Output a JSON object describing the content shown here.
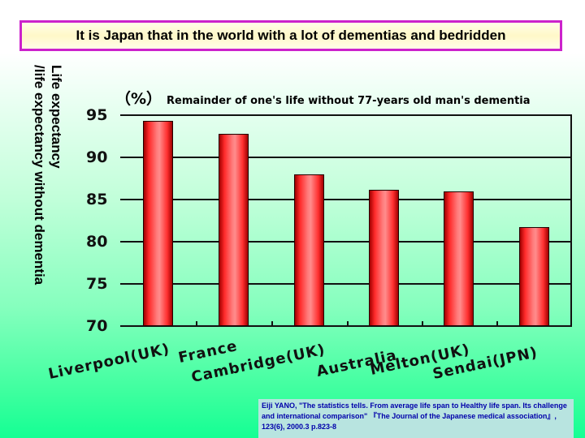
{
  "title": "It is Japan that in the world with a lot of dementias and bedridden",
  "y_axis_label_line1": "Life expectancy",
  "y_axis_label_line2": "/life expectancy without dementia",
  "subtitle_unit": "（%）",
  "subtitle_text": "Remainder of one's life without 77-years old man's dementia",
  "y_ticks": [
    "95",
    "90",
    "85",
    "80",
    "75",
    "70"
  ],
  "x_labels": [
    "Liverpool(UK)",
    "France",
    "Cambridge(UK)",
    "Australia",
    "Melton(UK)",
    "Sendai(JPN)"
  ],
  "citation": "Eiji YANO, \"The statistics tells. From average life span to Healthy life span. Its challenge and international comparison\" 『The Journal of the Japanese medical association』, 123(6), 2000.3 p.823-8",
  "colors": {
    "bar": "#ff3030",
    "title_border": "#cc22cc",
    "citation_text": "#0000aa",
    "citation_bg": "#b8e4e0"
  },
  "chart_data": {
    "type": "bar",
    "title": "Remainder of one's life without 77-years old man's dementia",
    "xlabel": "",
    "ylabel": "Life expectancy /life expectancy without dementia (%)",
    "categories": [
      "Liverpool(UK)",
      "France",
      "Cambridge(UK)",
      "Australia",
      "Melton(UK)",
      "Sendai(JPN)"
    ],
    "values": [
      94.3,
      92.8,
      88.0,
      86.2,
      86.0,
      81.7
    ],
    "ylim": [
      70,
      95
    ],
    "yticks": [
      70,
      75,
      80,
      85,
      90,
      95
    ],
    "grid": true,
    "legend": null
  }
}
